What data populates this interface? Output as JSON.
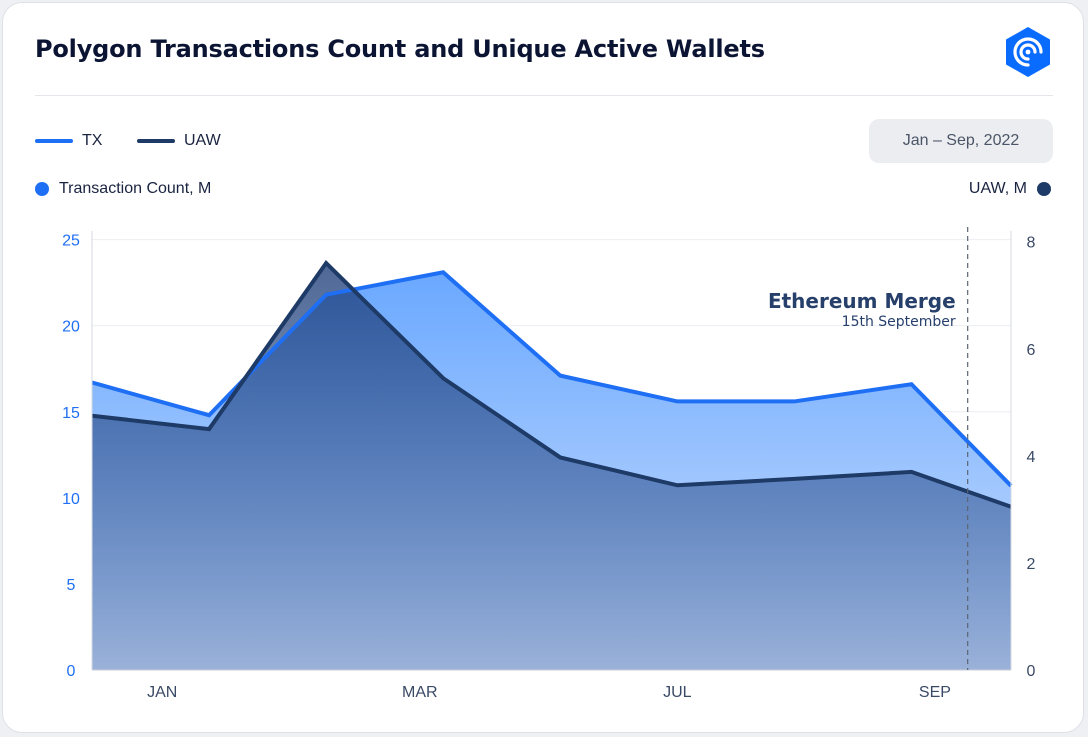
{
  "header": {
    "title": "Polygon Transactions Count and Unique Active Wallets",
    "date_range": "Jan – Sep, 2022"
  },
  "legend": [
    {
      "name": "TX",
      "color": "#1f6ff5"
    },
    {
      "name": "UAW",
      "color": "#1e3a66"
    }
  ],
  "axes": {
    "left_label": "Transaction Count, M",
    "right_label": "UAW, M"
  },
  "watermark": "DappRadar",
  "chart_data": {
    "type": "area",
    "x": [
      0,
      1,
      2,
      3,
      4,
      5,
      6,
      7,
      8
    ],
    "x_ticks": [
      {
        "label": "JAN",
        "x": 0.6
      },
      {
        "label": "MAR",
        "x": 2.8
      },
      {
        "label": "JUL",
        "x": 5.0
      },
      {
        "label": "SEP",
        "x": 7.2
      }
    ],
    "xlim": [
      0,
      7.85
    ],
    "series": [
      {
        "name": "TX",
        "axis": "left",
        "color": "#1f6ff5",
        "x": [
          0,
          1,
          2,
          3,
          4,
          5,
          6,
          7,
          7.85
        ],
        "values": [
          16.7,
          14.8,
          21.8,
          23.1,
          17.1,
          15.6,
          15.6,
          16.6,
          10.7
        ]
      },
      {
        "name": "UAW",
        "axis": "right",
        "color": "#1e3a66",
        "x": [
          0,
          1,
          2,
          3,
          4,
          5,
          6,
          7,
          7.85
        ],
        "values": [
          4.75,
          4.5,
          7.6,
          5.45,
          3.97,
          3.45,
          3.57,
          3.7,
          3.05
        ]
      }
    ],
    "y_left": {
      "ticks": [
        0,
        5,
        10,
        15,
        20,
        25
      ],
      "ylim": [
        0,
        25.5
      ],
      "color": "#1f6ff5"
    },
    "y_right": {
      "ticks": [
        0,
        2,
        4,
        6,
        8
      ],
      "ylim": [
        0,
        8.2
      ],
      "color": "#3a4a66"
    },
    "grid": true,
    "annotation": {
      "title": "Ethereum Merge",
      "subtitle": "15th September",
      "x": 7.48
    }
  }
}
